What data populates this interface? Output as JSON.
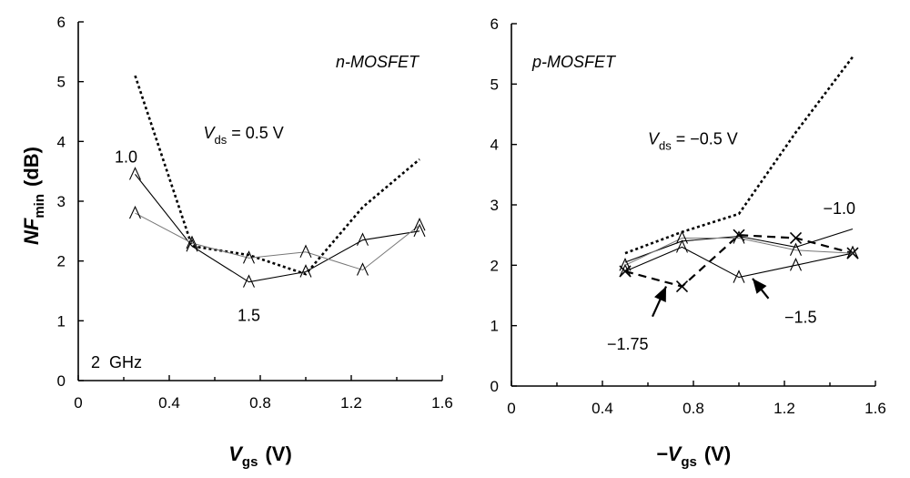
{
  "chart_data": [
    {
      "type": "line",
      "panel_label": "n-MOSFET",
      "xlabel_main": "V",
      "xlabel_sub": "gs",
      "xlabel_unit": "(V)",
      "ylabel_main": "NF",
      "ylabel_sub": "min",
      "ylabel_unit": "(dB)",
      "xlim": [
        0,
        1.6
      ],
      "ylim": [
        0,
        6
      ],
      "xticks": [
        "0",
        "0.4",
        "0.8",
        "1.2",
        "1.6"
      ],
      "yticks": [
        "0",
        "1",
        "2",
        "3",
        "4",
        "5",
        "6"
      ],
      "frequency_label": "2  GHz",
      "series": [
        {
          "style": "dotted-thick",
          "x": [
            0.25,
            0.5,
            0.75,
            1.0,
            1.25,
            1.5
          ],
          "y": [
            5.1,
            2.25,
            2.1,
            1.78,
            2.9,
            3.7
          ]
        },
        {
          "style": "solid-thin",
          "x": [
            0.25,
            0.5,
            0.75,
            1.0,
            1.25,
            1.5
          ],
          "y": [
            3.45,
            2.25,
            1.65,
            1.82,
            2.35,
            2.5
          ],
          "markers": "triangle"
        },
        {
          "style": "solid-light",
          "x": [
            0.25,
            0.5,
            0.75,
            1.0,
            1.25,
            1.5
          ],
          "y": [
            2.8,
            2.3,
            2.05,
            2.15,
            1.85,
            2.6
          ],
          "markers": "triangle"
        }
      ],
      "annotations": [
        {
          "id": "vds",
          "main": "V",
          "sub": "ds",
          "rest": " = 0.5 V",
          "x": 0.55,
          "y": 4.05
        },
        {
          "id": "v10",
          "text": "1.0",
          "x": 0.16,
          "y": 3.65
        },
        {
          "id": "v15",
          "text": "1.5",
          "x": 0.7,
          "y": 1.0
        }
      ]
    },
    {
      "type": "line",
      "panel_label": "p-MOSFET",
      "xlabel_main": "−V",
      "xlabel_sub": "gs",
      "xlabel_unit": "(V)",
      "xlim": [
        0,
        1.6
      ],
      "ylim": [
        0,
        6
      ],
      "xticks": [
        "0",
        "0.4",
        "0.8",
        "1.2",
        "1.6"
      ],
      "yticks": [
        "0",
        "1",
        "2",
        "3",
        "4",
        "5",
        "6"
      ],
      "series": [
        {
          "style": "dotted-thick",
          "x": [
            0.5,
            0.75,
            1.0,
            1.25,
            1.5
          ],
          "y": [
            2.2,
            2.55,
            2.85,
            4.2,
            5.45
          ]
        },
        {
          "style": "dashed-thick",
          "x": [
            0.5,
            0.75,
            1.0,
            1.25,
            1.5
          ],
          "y": [
            1.9,
            1.65,
            2.5,
            2.45,
            2.2
          ],
          "markers": "x"
        },
        {
          "style": "solid-thin",
          "x": [
            0.5,
            0.75,
            1.0,
            1.25,
            1.5
          ],
          "y": [
            1.9,
            2.3,
            1.8,
            2.0,
            2.2
          ],
          "markers": "triangle"
        },
        {
          "style": "solid-thin",
          "x": [
            0.5,
            0.75,
            1.0,
            1.25,
            1.5
          ],
          "y": [
            2.05,
            2.4,
            2.48,
            2.3,
            2.6
          ]
        },
        {
          "style": "solid-light",
          "x": [
            0.5,
            0.75,
            1.0,
            1.25,
            1.5
          ],
          "y": [
            2.0,
            2.45,
            2.45,
            2.25,
            2.2
          ],
          "markers": "triangle"
        }
      ],
      "annotations": [
        {
          "id": "vds",
          "main": "V",
          "sub": "ds",
          "rest": " =  −0.5 V",
          "x": 0.6,
          "y": 4.0
        },
        {
          "id": "v10",
          "text": "−1.0",
          "x": 1.37,
          "y": 2.85
        },
        {
          "id": "v15",
          "text": "−1.5",
          "x": 1.2,
          "y": 1.05
        },
        {
          "id": "v175",
          "text": "−1.75",
          "x": 0.42,
          "y": 0.6
        }
      ],
      "arrows": [
        {
          "from": [
            0.62,
            1.15
          ],
          "to": [
            0.68,
            1.65
          ]
        },
        {
          "from": [
            1.13,
            1.45
          ],
          "to": [
            1.06,
            1.78
          ]
        }
      ]
    }
  ]
}
